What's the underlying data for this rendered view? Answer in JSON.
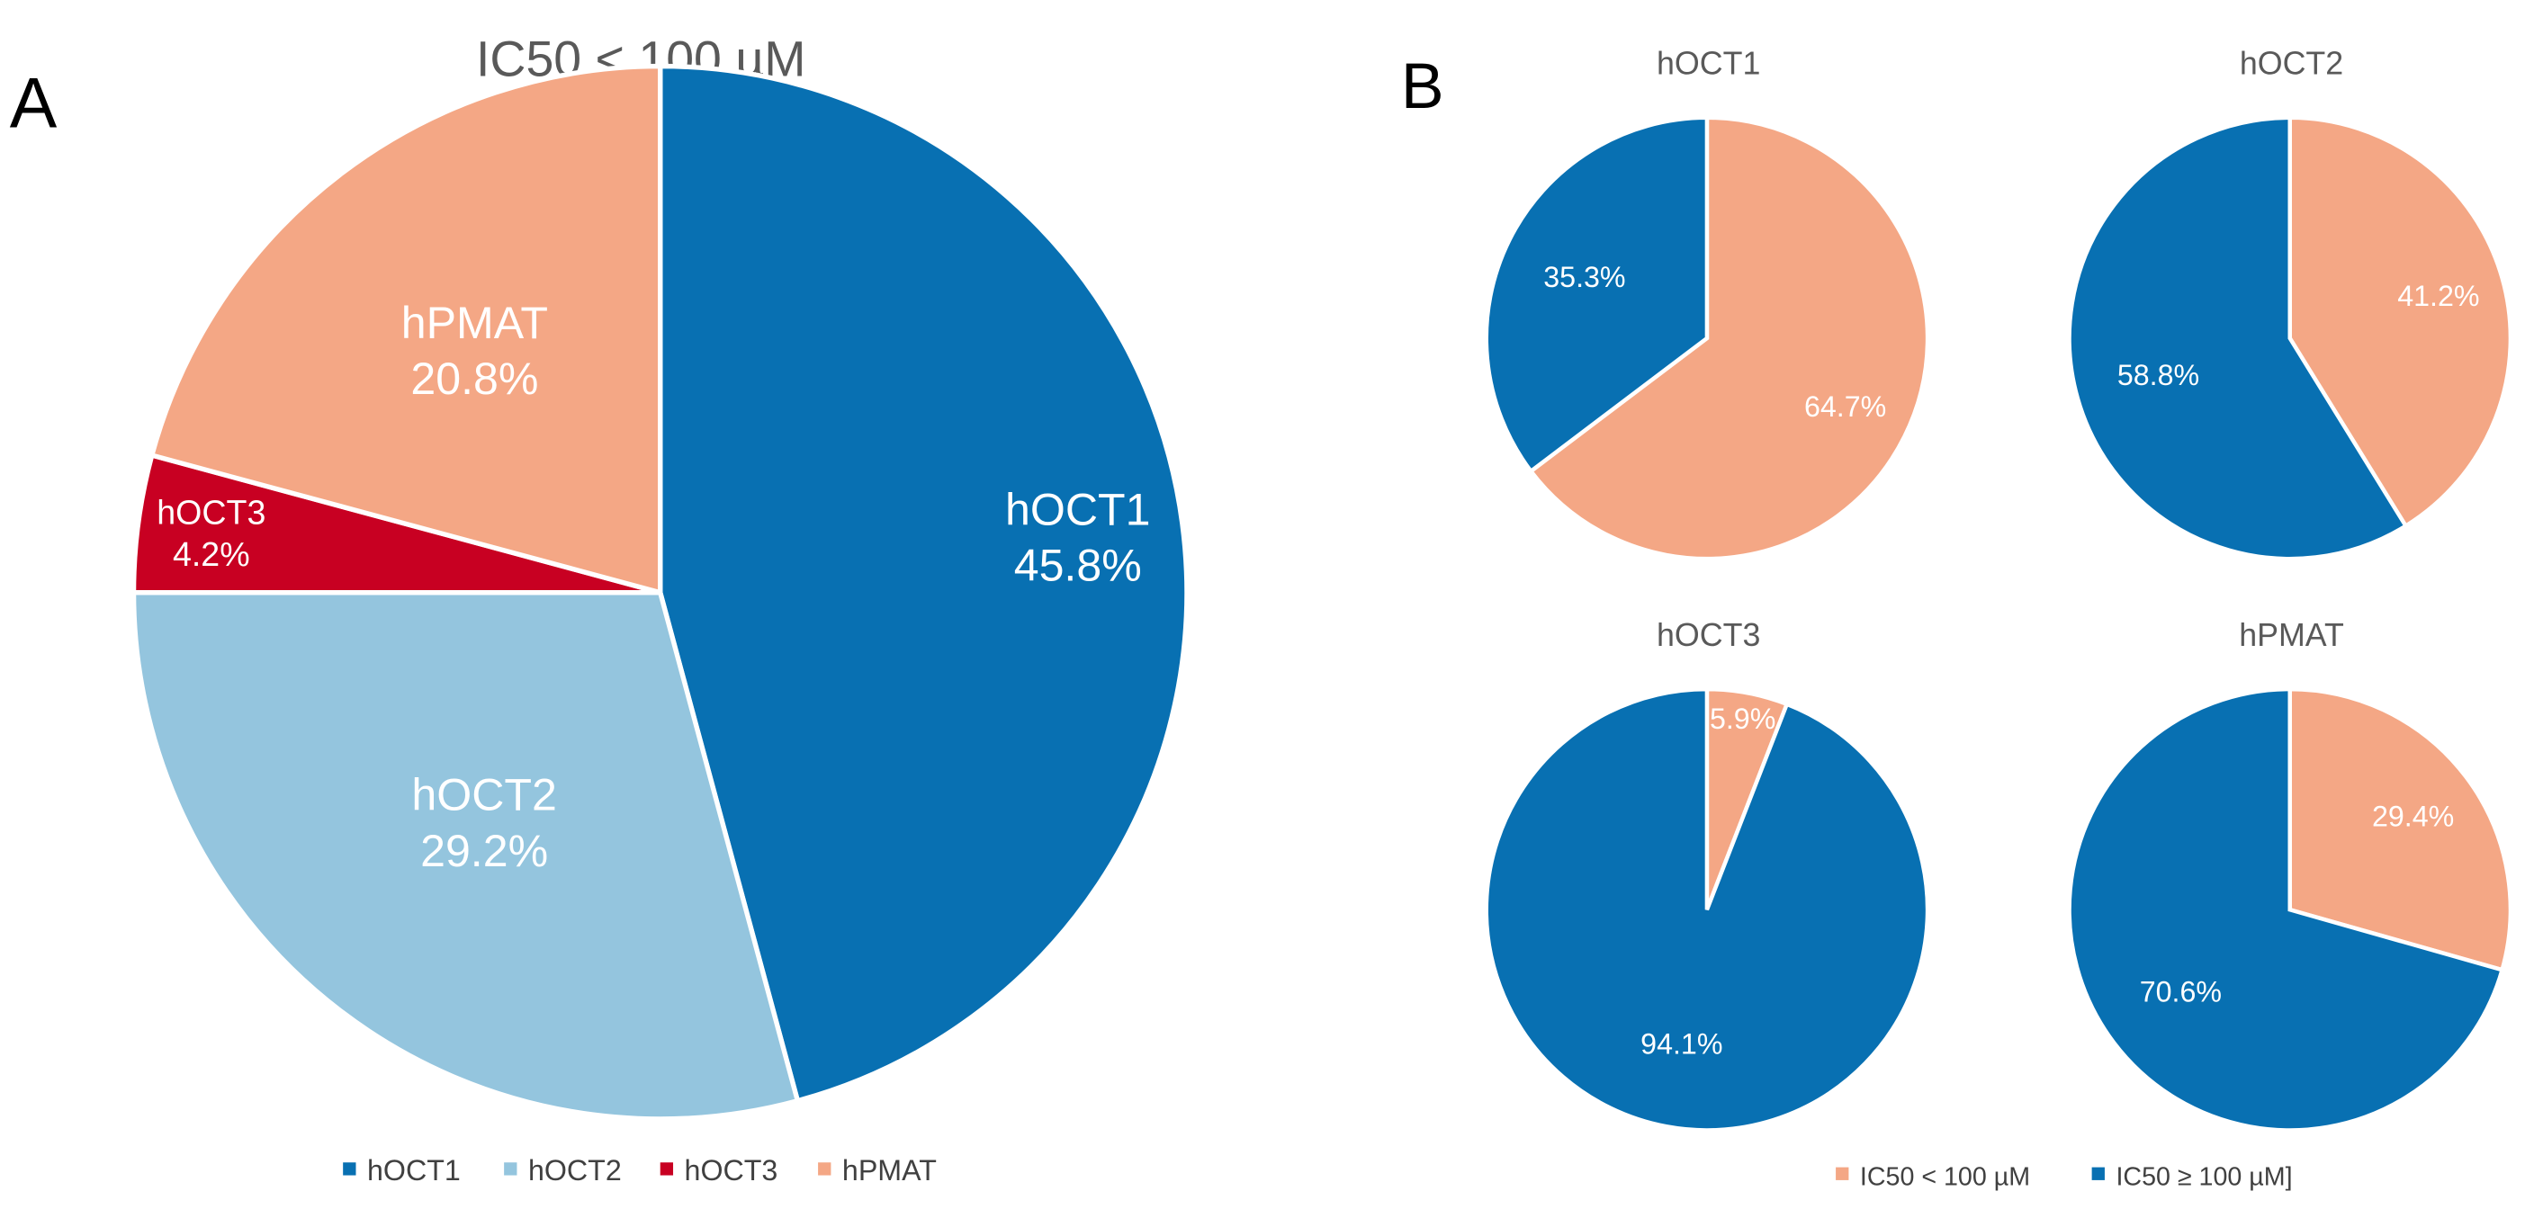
{
  "panels": {
    "a": "A",
    "b": "B"
  },
  "colors": {
    "hOCT1": "#0870b2",
    "hOCT2": "#94c5de",
    "hOCT3": "#c80022",
    "hPMAT": "#f4a785",
    "below": "#f4a785",
    "above": "#0870b2",
    "title_text": "#595959",
    "label_text": "#ffffff",
    "legend_text": "#404040"
  },
  "chart_data": [
    {
      "type": "pie",
      "title": "IC50 < 100 µM",
      "start_angle": "12 o'clock",
      "direction": "clockwise",
      "categories": [
        "hOCT1",
        "hOCT2",
        "hOCT3",
        "hPMAT"
      ],
      "values": [
        45.8,
        29.2,
        4.2,
        20.8
      ],
      "value_labels": [
        "45.8%",
        "29.2%",
        "4.2%",
        "20.8%"
      ],
      "slice_labels": [
        "hOCT1",
        "hOCT2",
        "hOCT3",
        "hPMAT"
      ],
      "legend": {
        "position": "bottom",
        "entries": [
          "hOCT1",
          "hOCT2",
          "hOCT3",
          "hPMAT"
        ]
      }
    },
    {
      "type": "pie",
      "title": "hOCT1",
      "categories": [
        "IC50 < 100 µM",
        "IC50 ≥ 100 µM]"
      ],
      "values": [
        64.7,
        35.3
      ],
      "value_labels": [
        "64.7%",
        "35.3%"
      ]
    },
    {
      "type": "pie",
      "title": "hOCT2",
      "categories": [
        "IC50 < 100 µM",
        "IC50 ≥ 100 µM]"
      ],
      "values": [
        41.2,
        58.8
      ],
      "value_labels": [
        "41.2%",
        "58.8%"
      ]
    },
    {
      "type": "pie",
      "title": "hOCT3",
      "categories": [
        "IC50 < 100 µM",
        "IC50 ≥ 100 µM]"
      ],
      "values": [
        5.9,
        94.1
      ],
      "value_labels": [
        "5.9%",
        "94.1%"
      ]
    },
    {
      "type": "pie",
      "title": "hPMAT",
      "categories": [
        "IC50 < 100 µM",
        "IC50 ≥ 100 µM]"
      ],
      "values": [
        29.4,
        70.6
      ],
      "value_labels": [
        "29.4%",
        "70.6%"
      ]
    }
  ],
  "legend_b": {
    "position": "bottom-right",
    "entries": [
      "IC50 < 100 µM",
      "IC50 ≥ 100 µM]"
    ]
  }
}
